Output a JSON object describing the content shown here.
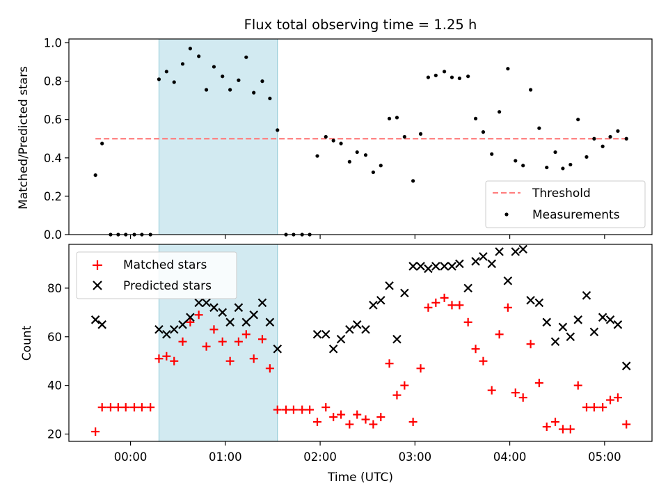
{
  "figure_title": "Flux total observing time = 1.25 h",
  "chart_data": [
    {
      "type": "scatter",
      "panel": "top",
      "xlabel": "",
      "ylabel": "Matched/Predicted stars",
      "xlim_hours": [
        -0.65,
        5.5
      ],
      "ylim": [
        0.0,
        1.02
      ],
      "yticks": [
        0.0,
        0.2,
        0.4,
        0.6,
        0.8,
        1.0
      ],
      "ytick_labels": [
        "0.0",
        "0.2",
        "0.4",
        "0.6",
        "0.8",
        "1.0"
      ],
      "shaded_interval_hours": [
        0.3,
        1.55
      ],
      "shade_color": "#add8e6",
      "threshold": {
        "name": "Threshold",
        "value": 0.5,
        "x_range_hours": [
          -0.37,
          5.23
        ],
        "color": "#ff7f7f",
        "style": "dashed"
      },
      "legend": {
        "placement": "lower right",
        "entries": [
          "Threshold",
          "Measurements"
        ]
      },
      "series": [
        {
          "name": "Measurements",
          "color": "#000000",
          "marker": "dot",
          "x_hours": [
            -0.37,
            -0.3,
            -0.21,
            -0.13,
            -0.05,
            0.04,
            0.12,
            0.21,
            0.3,
            0.38,
            0.46,
            0.55,
            0.63,
            0.72,
            0.8,
            0.88,
            0.97,
            1.05,
            1.14,
            1.22,
            1.3,
            1.39,
            1.47,
            1.55,
            1.64,
            1.72,
            1.81,
            1.89,
            1.97,
            2.06,
            2.14,
            2.22,
            2.31,
            2.39,
            2.48,
            2.56,
            2.64,
            2.73,
            2.81,
            2.89,
            2.98,
            3.06,
            3.14,
            3.22,
            3.31,
            3.39,
            3.47,
            3.56,
            3.64,
            3.72,
            3.81,
            3.89,
            3.98,
            4.06,
            4.14,
            4.22,
            4.31,
            4.39,
            4.48,
            4.56,
            4.64,
            4.72,
            4.81,
            4.89,
            4.98,
            5.06,
            5.14,
            5.23
          ],
          "y": [
            0.31,
            0.475,
            0.0,
            0.0,
            0.0,
            0.0,
            0.0,
            0.0,
            0.81,
            0.85,
            0.795,
            0.89,
            0.97,
            0.93,
            0.755,
            0.875,
            0.825,
            0.755,
            0.805,
            0.925,
            0.74,
            0.8,
            0.71,
            0.545,
            0.0,
            0.0,
            0.0,
            0.0,
            0.41,
            0.51,
            0.49,
            0.475,
            0.38,
            0.43,
            0.415,
            0.325,
            0.36,
            0.605,
            0.61,
            0.51,
            0.28,
            0.525,
            0.82,
            0.83,
            0.85,
            0.82,
            0.815,
            0.825,
            0.605,
            0.535,
            0.42,
            0.64,
            0.865,
            0.385,
            0.36,
            0.755,
            0.555,
            0.35,
            0.43,
            0.345,
            0.365,
            0.6,
            0.405,
            0.5,
            0.46,
            0.51,
            0.54,
            0.5
          ]
        }
      ]
    },
    {
      "type": "scatter",
      "panel": "bottom",
      "xlabel": "Time (UTC)",
      "ylabel": "Count",
      "xlim_hours": [
        -0.65,
        5.5
      ],
      "ylim": [
        17,
        98
      ],
      "yticks": [
        20,
        40,
        60,
        80
      ],
      "ytick_labels": [
        "20",
        "40",
        "60",
        "80"
      ],
      "xticks_hours": [
        0,
        1,
        2,
        3,
        4,
        5
      ],
      "xtick_labels": [
        "00:00",
        "01:00",
        "02:00",
        "03:00",
        "04:00",
        "05:00"
      ],
      "shaded_interval_hours": [
        0.3,
        1.55
      ],
      "shade_color": "#add8e6",
      "legend": {
        "placement": "upper left",
        "entries": [
          "Matched stars",
          "Predicted stars"
        ]
      },
      "series": [
        {
          "name": "Matched stars",
          "color": "#ff0000",
          "marker": "plus",
          "x_hours": [
            -0.37,
            -0.3,
            -0.21,
            -0.13,
            -0.05,
            0.04,
            0.12,
            0.21,
            0.3,
            0.38,
            0.46,
            0.55,
            0.63,
            0.72,
            0.8,
            0.88,
            0.97,
            1.05,
            1.14,
            1.22,
            1.3,
            1.39,
            1.47,
            1.55,
            1.64,
            1.72,
            1.81,
            1.89,
            1.97,
            2.06,
            2.14,
            2.22,
            2.31,
            2.39,
            2.48,
            2.56,
            2.64,
            2.73,
            2.81,
            2.89,
            2.98,
            3.06,
            3.14,
            3.22,
            3.31,
            3.39,
            3.47,
            3.56,
            3.64,
            3.72,
            3.81,
            3.89,
            3.98,
            4.06,
            4.14,
            4.22,
            4.31,
            4.39,
            4.48,
            4.56,
            4.64,
            4.72,
            4.81,
            4.89,
            4.98,
            5.06,
            5.14,
            5.23
          ],
          "y": [
            21,
            31,
            31,
            31,
            31,
            31,
            31,
            31,
            51,
            52,
            50,
            58,
            66,
            69,
            56,
            63,
            58,
            50,
            58,
            61,
            51,
            59,
            47,
            30,
            30,
            30,
            30,
            30,
            25,
            31,
            27,
            28,
            24,
            28,
            26,
            24,
            27,
            49,
            36,
            40,
            25,
            47,
            72,
            74,
            76,
            73,
            73,
            66,
            55,
            50,
            38,
            61,
            72,
            37,
            35,
            57,
            41,
            23,
            25,
            22,
            22,
            40,
            31,
            31,
            31,
            34,
            35,
            24
          ]
        },
        {
          "name": "Predicted stars",
          "color": "#000000",
          "marker": "x",
          "x_hours": [
            -0.37,
            -0.3,
            0.3,
            0.38,
            0.46,
            0.55,
            0.63,
            0.72,
            0.8,
            0.88,
            0.97,
            1.05,
            1.14,
            1.22,
            1.3,
            1.39,
            1.47,
            1.55,
            1.97,
            2.06,
            2.14,
            2.22,
            2.31,
            2.39,
            2.48,
            2.56,
            2.64,
            2.73,
            2.81,
            2.89,
            2.98,
            3.06,
            3.14,
            3.22,
            3.31,
            3.39,
            3.47,
            3.56,
            3.64,
            3.72,
            3.81,
            3.89,
            3.98,
            4.06,
            4.14,
            4.22,
            4.31,
            4.39,
            4.48,
            4.56,
            4.64,
            4.72,
            4.81,
            4.89,
            4.98,
            5.06,
            5.14,
            5.23
          ],
          "y": [
            67,
            65,
            63,
            61,
            63,
            65,
            68,
            74,
            74,
            72,
            70,
            66,
            72,
            66,
            69,
            74,
            66,
            55,
            61,
            61,
            55,
            59,
            63,
            65,
            63,
            73,
            75,
            81,
            59,
            78,
            89,
            89,
            88,
            89,
            89,
            89,
            90,
            80,
            91,
            93,
            90,
            95,
            83,
            95,
            96,
            75,
            74,
            66,
            58,
            64,
            60,
            67,
            77,
            62,
            68,
            67,
            65,
            48
          ]
        }
      ]
    }
  ]
}
